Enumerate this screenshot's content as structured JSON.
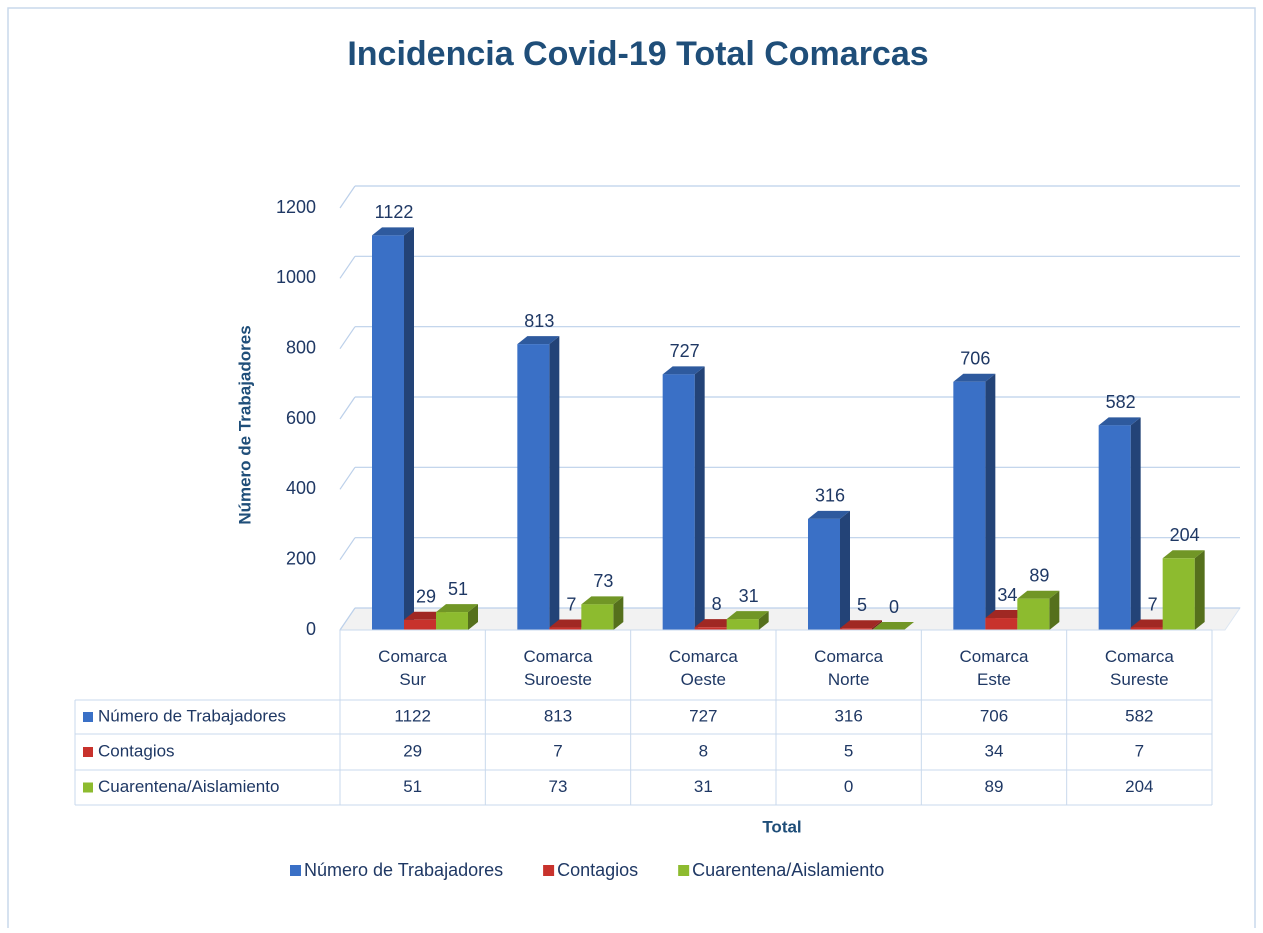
{
  "chart_data": {
    "type": "bar3d",
    "title": "Incidencia Covid-19 Total Comarcas",
    "y_label": "Número de Trabajadores",
    "x_label": "Total",
    "categories": [
      "Comarca Sur",
      "Comarca Suroeste",
      "Comarca Oeste",
      "Comarca Norte",
      "Comarca Este",
      "Comarca Sureste"
    ],
    "series": [
      {
        "name": "Número de Trabajadores",
        "color": "#3a70c6",
        "values": [
          1122,
          813,
          727,
          316,
          706,
          582
        ]
      },
      {
        "name": "Contagios",
        "color": "#c8322c",
        "values": [
          29,
          7,
          8,
          5,
          34,
          7
        ]
      },
      {
        "name": "Cuarentena/Aislamiento",
        "color": "#8dbb2f",
        "values": [
          51,
          73,
          31,
          0,
          89,
          204
        ]
      }
    ],
    "ylim": [
      0,
      1200
    ],
    "yticks": [
      0,
      200,
      400,
      600,
      800,
      1000,
      1200
    ],
    "grid": true
  }
}
